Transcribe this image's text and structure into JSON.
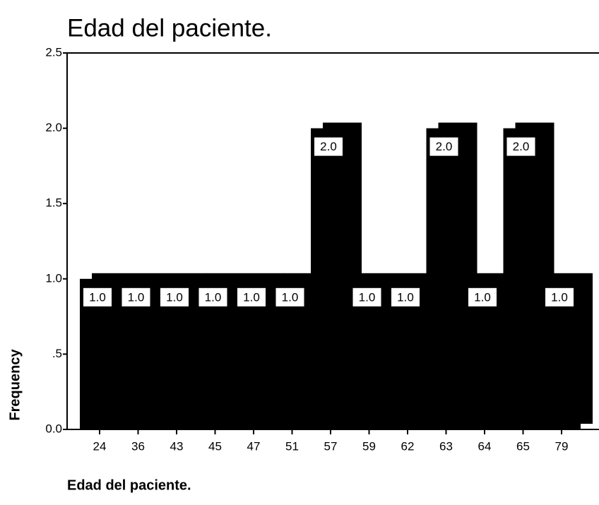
{
  "chart_data": {
    "type": "bar",
    "title": "Edad del paciente.",
    "x_label": "Edad del paciente.",
    "y_label": "Frequency",
    "categories": [
      "24",
      "36",
      "43",
      "45",
      "47",
      "51",
      "57",
      "59",
      "62",
      "63",
      "64",
      "65",
      "79"
    ],
    "values": [
      1,
      1,
      1,
      1,
      1,
      1,
      2,
      1,
      1,
      2,
      1,
      2,
      1
    ],
    "value_labels": [
      "1.0",
      "1.0",
      "1.0",
      "1.0",
      "1.0",
      "1.0",
      "2.0",
      "1.0",
      "1.0",
      "2.0",
      "1.0",
      "2.0",
      "1.0"
    ],
    "color": "#000000",
    "ylim": [
      0,
      2.5
    ],
    "yticks": [
      {
        "value": 0,
        "label": "0.0"
      },
      {
        "value": 0.5,
        "label": ".5"
      },
      {
        "value": 1,
        "label": "1.0"
      },
      1.5,
      {
        "value": 2,
        "label": "2.0"
      },
      2.5
    ]
  }
}
